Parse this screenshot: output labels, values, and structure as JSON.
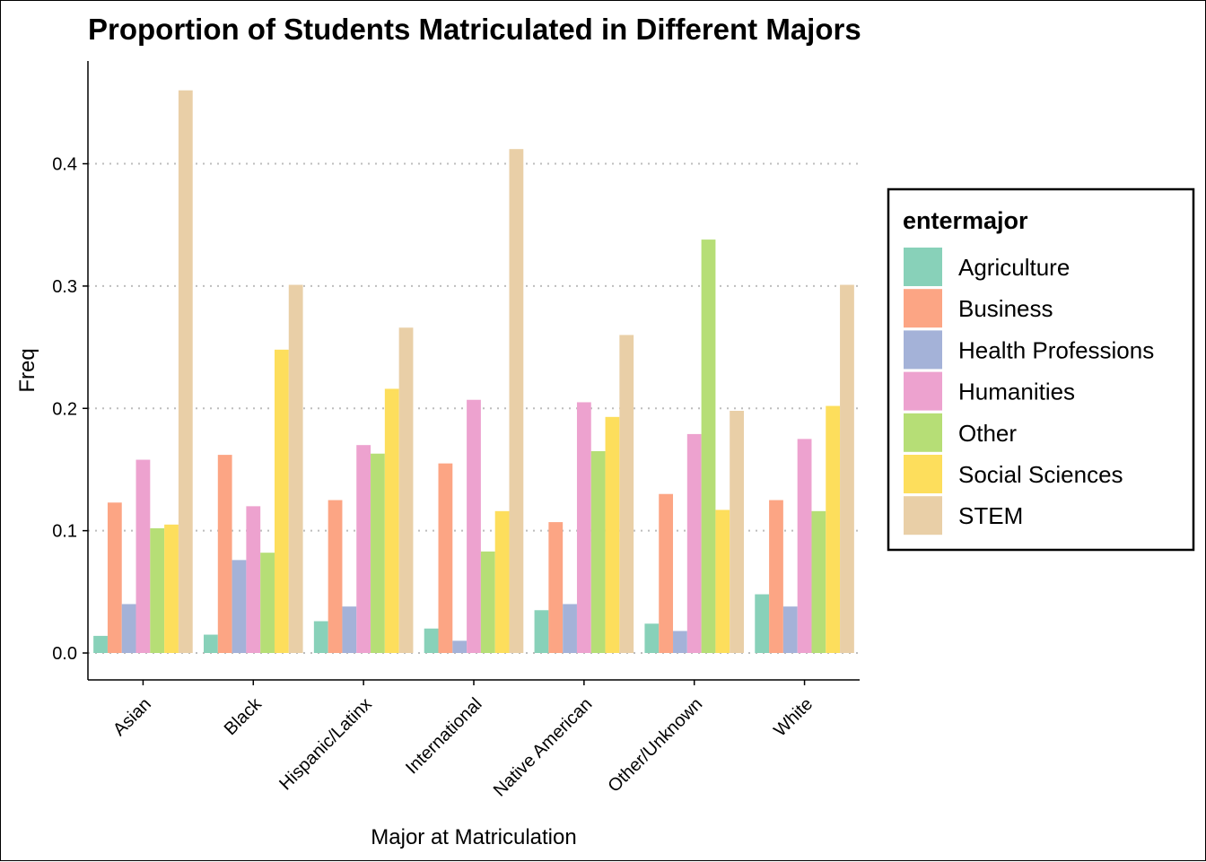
{
  "chart_data": {
    "type": "bar",
    "title": "Proportion of Students Matriculated in Different Majors",
    "xlabel": "Major at Matriculation",
    "ylabel": "Freq",
    "ylim": [
      -0.022,
      0.484
    ],
    "yticks": [
      "0.0",
      "0.1",
      "0.2",
      "0.3",
      "0.4"
    ],
    "ytick_values": [
      0.0,
      0.1,
      0.2,
      0.3,
      0.4
    ],
    "grid": "horizontal dotted",
    "legend": {
      "title": "entermajor",
      "placement": "right"
    },
    "categories": [
      "Asian",
      "Black",
      "Hispanic/Latinx",
      "International",
      "Native American",
      "Other/Unknown",
      "White"
    ],
    "series": [
      {
        "name": "Agriculture",
        "color": "#88D1B9",
        "values": [
          0.014,
          0.015,
          0.026,
          0.02,
          0.035,
          0.024,
          0.048
        ]
      },
      {
        "name": "Business",
        "color": "#FCA584",
        "values": [
          0.123,
          0.162,
          0.125,
          0.155,
          0.107,
          0.13,
          0.125
        ]
      },
      {
        "name": "Health Professions",
        "color": "#A4B2D8",
        "values": [
          0.04,
          0.076,
          0.038,
          0.01,
          0.04,
          0.018,
          0.038
        ]
      },
      {
        "name": "Humanities",
        "color": "#EDA2CF",
        "values": [
          0.158,
          0.12,
          0.17,
          0.207,
          0.205,
          0.179,
          0.175
        ]
      },
      {
        "name": "Other",
        "color": "#B6DE76",
        "values": [
          0.102,
          0.082,
          0.163,
          0.083,
          0.165,
          0.338,
          0.116
        ]
      },
      {
        "name": "Social Sciences",
        "color": "#FDDE5C",
        "values": [
          0.105,
          0.248,
          0.216,
          0.116,
          0.193,
          0.117,
          0.202
        ]
      },
      {
        "name": "STEM",
        "color": "#E9CFA7",
        "values": [
          0.46,
          0.301,
          0.266,
          0.412,
          0.26,
          0.198,
          0.301
        ]
      }
    ]
  }
}
